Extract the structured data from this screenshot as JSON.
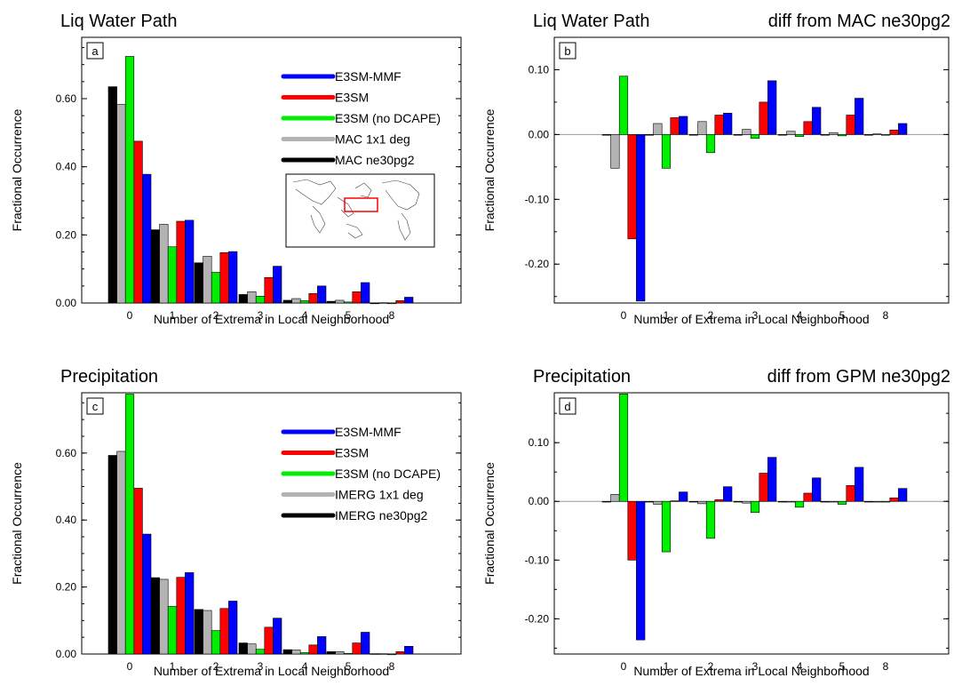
{
  "series_colors": {
    "E3SM-MMF": "#0000ff",
    "E3SM": "#ff0000",
    "E3SM (no DCAPE)": "#00ee00",
    "gridded_1x1": "#b3b3b3",
    "ne30pg2": "#000000"
  },
  "chart_data": [
    {
      "id": "a",
      "type": "bar",
      "title": "Liq Water Path",
      "title_right": "",
      "panel_label": "a",
      "xlabel": "Number of Extrema in Local Neighborhood",
      "ylabel": "Fractional Occurrence",
      "categories": [
        "0",
        "1",
        "2",
        "3",
        "4",
        "5",
        "8"
      ],
      "ylim": [
        0,
        0.78
      ],
      "yticks": [
        0.0,
        0.2,
        0.4,
        0.6
      ],
      "ytick_labels": [
        "0.00",
        "0.20",
        "0.40",
        "0.60"
      ],
      "legend_position": "top-right",
      "inset_map": true,
      "series": [
        {
          "name": "MAC ne30pg2",
          "color": "#000000",
          "values": [
            0.635,
            0.215,
            0.118,
            0.025,
            0.008,
            0.005,
            0.0
          ]
        },
        {
          "name": "MAC 1x1 deg",
          "color": "#b3b3b3",
          "values": [
            0.583,
            0.231,
            0.137,
            0.033,
            0.013,
            0.008,
            0.001
          ]
        },
        {
          "name": "E3SM (no DCAPE)",
          "color": "#00ee00",
          "values": [
            0.724,
            0.165,
            0.09,
            0.02,
            0.007,
            0.003,
            0.0
          ]
        },
        {
          "name": "E3SM",
          "color": "#ff0000",
          "values": [
            0.475,
            0.24,
            0.148,
            0.075,
            0.028,
            0.033,
            0.007
          ]
        },
        {
          "name": "E3SM-MMF",
          "color": "#0000ff",
          "values": [
            0.378,
            0.243,
            0.151,
            0.108,
            0.05,
            0.06,
            0.017
          ]
        }
      ],
      "legend_order": [
        "E3SM-MMF",
        "E3SM",
        "E3SM (no DCAPE)",
        "MAC 1x1 deg",
        "MAC ne30pg2"
      ]
    },
    {
      "id": "b",
      "type": "bar",
      "title": "Liq Water Path",
      "title_right": "diff from MAC ne30pg2",
      "panel_label": "b",
      "xlabel": "Number of Extrema in Local Neighborhood",
      "ylabel": "Fractional Occurrence",
      "categories": [
        "0",
        "1",
        "2",
        "3",
        "4",
        "5",
        "8"
      ],
      "ylim": [
        -0.26,
        0.15
      ],
      "yticks": [
        -0.2,
        -0.1,
        0.0,
        0.1
      ],
      "ytick_labels": [
        "-0.20",
        "-0.10",
        "0.00",
        "0.10"
      ],
      "series": [
        {
          "name": "MAC ne30pg2",
          "color": "#000000",
          "values": [
            0.0,
            0.0,
            0.0,
            0.0,
            0.0,
            0.0,
            0.0
          ]
        },
        {
          "name": "MAC 1x1 deg",
          "color": "#b3b3b3",
          "values": [
            -0.052,
            0.017,
            0.02,
            0.008,
            0.005,
            0.003,
            0.001
          ]
        },
        {
          "name": "E3SM (no DCAPE)",
          "color": "#00ee00",
          "values": [
            0.09,
            -0.052,
            -0.028,
            -0.006,
            -0.003,
            -0.002,
            0.0
          ]
        },
        {
          "name": "E3SM",
          "color": "#ff0000",
          "values": [
            -0.161,
            0.026,
            0.03,
            0.05,
            0.02,
            0.03,
            0.007
          ]
        },
        {
          "name": "E3SM-MMF",
          "color": "#0000ff",
          "values": [
            -0.257,
            0.028,
            0.033,
            0.083,
            0.042,
            0.056,
            0.017
          ]
        }
      ]
    },
    {
      "id": "c",
      "type": "bar",
      "title": "Precipitation",
      "title_right": "",
      "panel_label": "c",
      "xlabel": "Number of Extrema in Local Neighborhood",
      "ylabel": "Fractional Occurrence",
      "categories": [
        "0",
        "1",
        "2",
        "3",
        "4",
        "5",
        "8"
      ],
      "ylim": [
        0,
        0.78
      ],
      "yticks": [
        0.0,
        0.2,
        0.4,
        0.6
      ],
      "ytick_labels": [
        "0.00",
        "0.20",
        "0.40",
        "0.60"
      ],
      "legend_position": "top-right",
      "inset_map": false,
      "series": [
        {
          "name": "IMERG ne30pg2",
          "color": "#000000",
          "values": [
            0.593,
            0.228,
            0.133,
            0.033,
            0.013,
            0.007,
            0.001
          ]
        },
        {
          "name": "IMERG 1x1 deg",
          "color": "#b3b3b3",
          "values": [
            0.605,
            0.223,
            0.13,
            0.03,
            0.012,
            0.007,
            0.001
          ]
        },
        {
          "name": "E3SM (no DCAPE)",
          "color": "#00ee00",
          "values": [
            0.776,
            0.142,
            0.07,
            0.014,
            0.004,
            0.002,
            0.0
          ]
        },
        {
          "name": "E3SM",
          "color": "#ff0000",
          "values": [
            0.495,
            0.229,
            0.136,
            0.08,
            0.027,
            0.033,
            0.007
          ]
        },
        {
          "name": "E3SM-MMF",
          "color": "#0000ff",
          "values": [
            0.358,
            0.243,
            0.158,
            0.107,
            0.052,
            0.065,
            0.023
          ]
        }
      ],
      "legend_order": [
        "E3SM-MMF",
        "E3SM",
        "E3SM (no DCAPE)",
        "IMERG 1x1 deg",
        "IMERG ne30pg2"
      ]
    },
    {
      "id": "d",
      "type": "bar",
      "title": "Precipitation",
      "title_right": "diff from GPM ne30pg2",
      "panel_label": "d",
      "xlabel": "Number of Extrema in Local Neighborhood",
      "ylabel": "Fractional Occurrence",
      "categories": [
        "0",
        "1",
        "2",
        "3",
        "4",
        "5",
        "8"
      ],
      "ylim": [
        -0.26,
        0.185
      ],
      "yticks": [
        -0.2,
        -0.1,
        0.0,
        0.1
      ],
      "ytick_labels": [
        "-0.20",
        "-0.10",
        "0.00",
        "0.10"
      ],
      "series": [
        {
          "name": "IMERG ne30pg2",
          "color": "#000000",
          "values": [
            0.0,
            0.0,
            0.0,
            0.0,
            0.0,
            0.0,
            0.0
          ]
        },
        {
          "name": "IMERG 1x1 deg",
          "color": "#b3b3b3",
          "values": [
            0.012,
            -0.005,
            -0.004,
            -0.003,
            -0.001,
            0.0,
            0.0
          ]
        },
        {
          "name": "E3SM (no DCAPE)",
          "color": "#00ee00",
          "values": [
            0.183,
            -0.086,
            -0.063,
            -0.019,
            -0.01,
            -0.005,
            -0.001
          ]
        },
        {
          "name": "E3SM",
          "color": "#ff0000",
          "values": [
            -0.1,
            0.001,
            0.003,
            0.048,
            0.014,
            0.027,
            0.006
          ]
        },
        {
          "name": "E3SM-MMF",
          "color": "#0000ff",
          "values": [
            -0.236,
            0.016,
            0.025,
            0.075,
            0.04,
            0.058,
            0.022
          ]
        }
      ]
    }
  ]
}
